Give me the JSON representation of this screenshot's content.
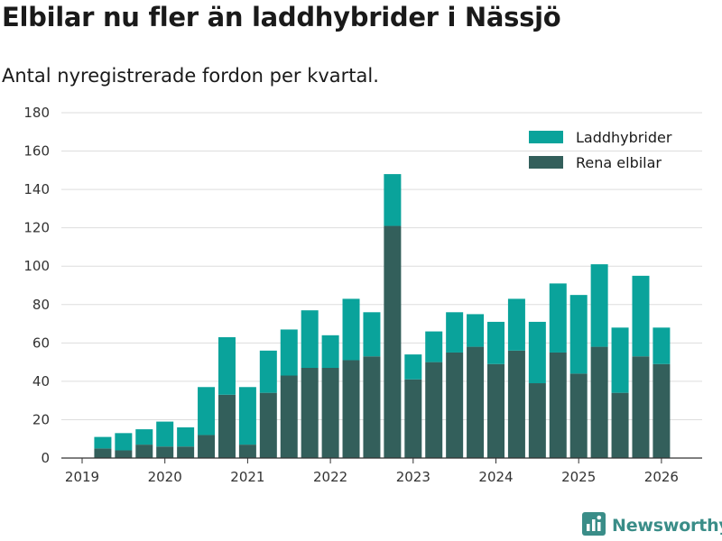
{
  "title": "Elbilar nu fler än laddhybrider i Nässjö",
  "subtitle": "Antal nyregistrerade fordon per kvartal.",
  "brand": {
    "name": "Newsworthy",
    "icon": "newsworthy-logo-icon"
  },
  "colors": {
    "laddhybrider": "#0aa39b",
    "rena_elbilar": "#335f5b",
    "grid": "#dddddd",
    "axis": "#333333"
  },
  "chart_data": {
    "type": "bar",
    "stacked": true,
    "title": "Elbilar nu fler än laddhybrider i Nässjö",
    "subtitle": "Antal nyregistrerade fordon per kvartal.",
    "xlabel": "",
    "ylabel": "",
    "ylim": [
      0,
      180
    ],
    "y_ticks": [
      0,
      20,
      40,
      60,
      80,
      100,
      120,
      140,
      160,
      180
    ],
    "x_ticks": [
      "2019",
      "2020",
      "2021",
      "2022",
      "2023",
      "2024",
      "2025",
      "2026"
    ],
    "categories": [
      "2019-Q2",
      "2019-Q3",
      "2019-Q4",
      "2020-Q1",
      "2020-Q2",
      "2020-Q3",
      "2020-Q4",
      "2021-Q1",
      "2021-Q2",
      "2021-Q3",
      "2021-Q4",
      "2022-Q1",
      "2022-Q2",
      "2022-Q3",
      "2022-Q4",
      "2023-Q1",
      "2023-Q2",
      "2023-Q3",
      "2023-Q4",
      "2024-Q1",
      "2024-Q2",
      "2024-Q3",
      "2024-Q4",
      "2025-Q1",
      "2025-Q2",
      "2025-Q3",
      "2025-Q4",
      "2026-Q1"
    ],
    "legend_position": "top-right",
    "grid": true,
    "series": [
      {
        "name": "Rena elbilar",
        "key": "rena_elbilar",
        "values": [
          5,
          4,
          7,
          6,
          6,
          12,
          33,
          7,
          34,
          43,
          47,
          47,
          51,
          53,
          121,
          41,
          50,
          55,
          58,
          49,
          56,
          39,
          55,
          44,
          58,
          34,
          53,
          49
        ]
      },
      {
        "name": "Laddhybrider",
        "key": "laddhybrider",
        "values": [
          6,
          9,
          8,
          13,
          10,
          25,
          30,
          30,
          22,
          24,
          30,
          17,
          32,
          23,
          27,
          13,
          16,
          21,
          17,
          22,
          27,
          32,
          36,
          41,
          43,
          34,
          42,
          19
        ]
      }
    ],
    "legend": [
      "Laddhybrider",
      "Rena elbilar"
    ]
  }
}
